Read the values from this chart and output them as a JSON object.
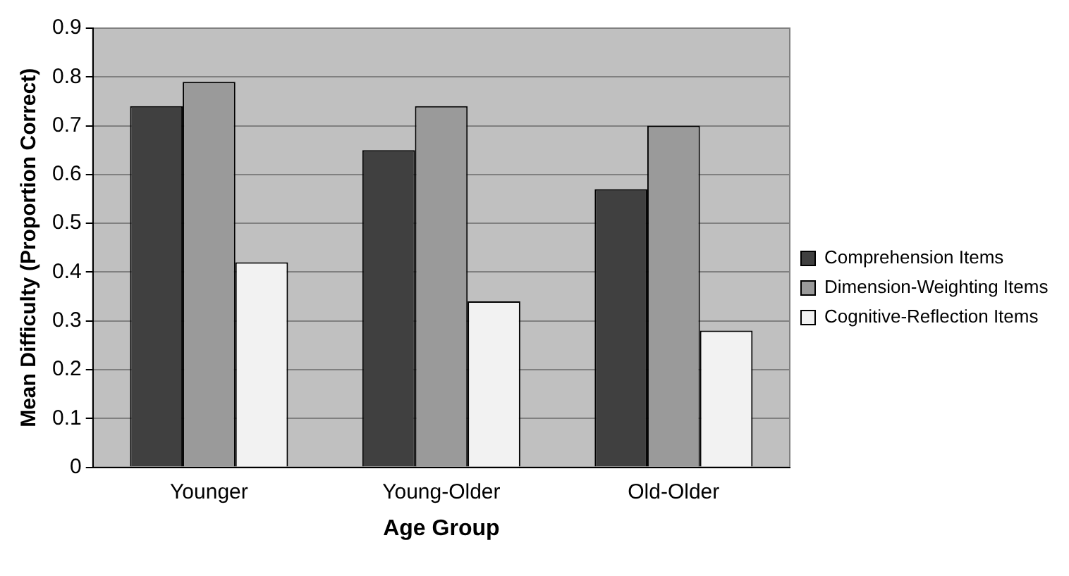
{
  "chart_data": {
    "type": "bar",
    "xlabel": "Age Group",
    "ylabel": "Mean Difficulty (Proportion Correct)",
    "categories": [
      "Younger",
      "Young-Older",
      "Old-Older"
    ],
    "series": [
      {
        "name": "Comprehension Items",
        "color": "#404040",
        "values": [
          0.74,
          0.65,
          0.57
        ]
      },
      {
        "name": "Dimension-Weighting Items",
        "color": "#9a9a9a",
        "values": [
          0.79,
          0.74,
          0.7
        ]
      },
      {
        "name": "Cognitive-Reflection Items",
        "color": "#f2f2f2",
        "values": [
          0.42,
          0.34,
          0.28
        ]
      }
    ],
    "ylim": [
      0,
      0.9
    ],
    "yticks": [
      0,
      0.1,
      0.2,
      0.3,
      0.4,
      0.5,
      0.6,
      0.7,
      0.8,
      0.9
    ],
    "grid": "y",
    "legend": "right"
  }
}
